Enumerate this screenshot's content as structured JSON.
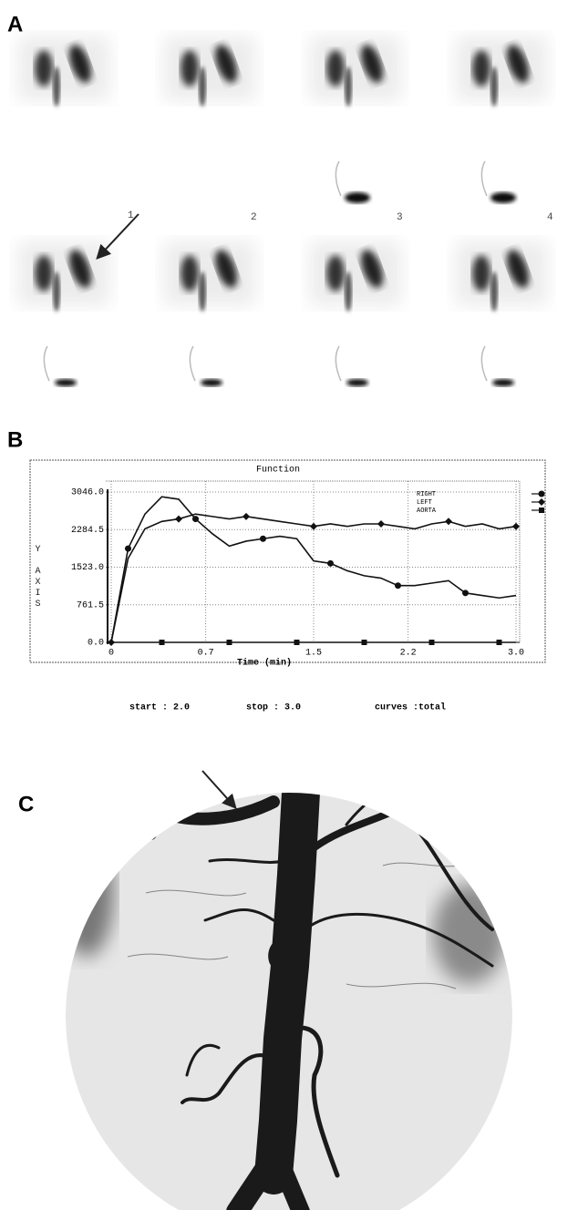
{
  "panels": {
    "a": "A",
    "b": "B",
    "c": "C"
  },
  "panel_a": {
    "frame_numbers": [
      "1",
      "2",
      "3",
      "4"
    ]
  },
  "chart_data": {
    "type": "line",
    "title": "Function",
    "x_label": "Time (min)",
    "y_label": "Y AXIS",
    "x": [
      0,
      0.125,
      0.25,
      0.375,
      0.5,
      0.625,
      0.75,
      0.875,
      1.0,
      1.125,
      1.25,
      1.375,
      1.5,
      1.625,
      1.75,
      1.875,
      2.0,
      2.125,
      2.25,
      2.375,
      2.5,
      2.625,
      2.75,
      2.875,
      3.0
    ],
    "series": [
      {
        "name": "RIGHT",
        "color": "#111111",
        "marker": "circle",
        "values": [
          0,
          1900,
          2600,
          2950,
          2900,
          2500,
          2200,
          1950,
          2050,
          2100,
          2150,
          2100,
          1650,
          1600,
          1450,
          1350,
          1300,
          1150,
          1150,
          1200,
          1250,
          1000,
          950,
          900,
          950
        ]
      },
      {
        "name": "LEFT",
        "color": "#111111",
        "marker": "diamond",
        "values": [
          0,
          1700,
          2300,
          2450,
          2500,
          2600,
          2550,
          2500,
          2550,
          2500,
          2450,
          2400,
          2350,
          2400,
          2350,
          2400,
          2400,
          2350,
          2300,
          2400,
          2450,
          2350,
          2400,
          2300,
          2350
        ]
      },
      {
        "name": "AORTA",
        "color": "#111111",
        "marker": "square",
        "values": [
          0,
          0,
          0,
          0,
          0,
          0,
          0,
          0,
          0,
          0,
          0,
          0,
          0,
          0,
          0,
          0,
          0,
          0,
          0,
          0,
          0,
          0,
          0,
          0,
          0
        ]
      }
    ],
    "xlim": [
      0,
      3.0
    ],
    "ylim": [
      0,
      3046
    ],
    "xticks": [
      0,
      0.7,
      1.5,
      2.2,
      {
        "value": 3,
        "label": "3.0"
      }
    ],
    "yticks": [
      {
        "value": 0,
        "label": "0.0"
      },
      761.5,
      {
        "value": 1523,
        "label": "1523.0"
      },
      2284.5,
      {
        "value": 3046,
        "label": "3046.0"
      }
    ],
    "grid": true
  },
  "footer": {
    "start": "start : 2.0",
    "stop": "stop : 3.0",
    "curves": "curves :total"
  }
}
